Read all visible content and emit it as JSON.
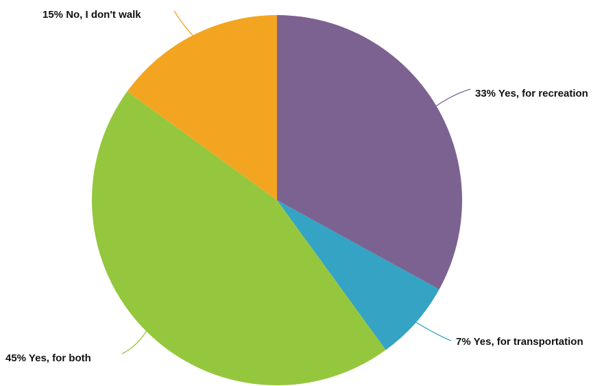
{
  "chart_data": {
    "type": "pie",
    "start_angle_deg": 0,
    "direction": "clockwise",
    "slices": [
      {
        "label": "Yes, for recreation",
        "value": 33,
        "display": "33% Yes, for recreation",
        "color": "#7c6291"
      },
      {
        "label": "Yes, for transportation",
        "value": 7,
        "display": "7% Yes, for transportation",
        "color": "#35a3c3"
      },
      {
        "label": "Yes, for both",
        "value": 45,
        "display": "45% Yes, for both",
        "color": "#95c73e"
      },
      {
        "label": "No, I don't walk",
        "value": 15,
        "display": "15% No, I don't walk",
        "color": "#f3a521"
      }
    ]
  }
}
